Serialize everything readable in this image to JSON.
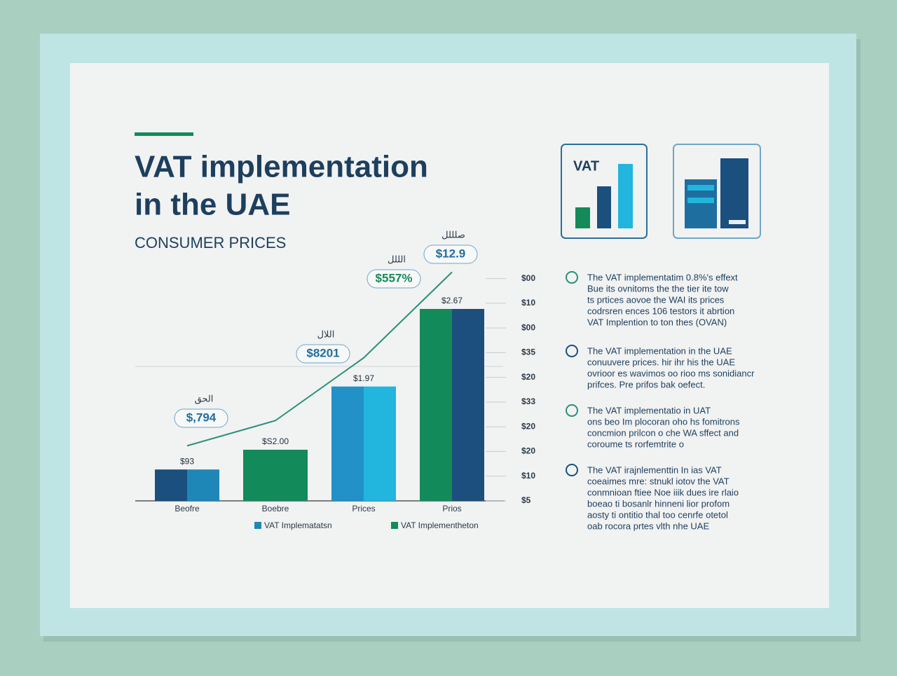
{
  "header": {
    "title_lines": [
      "VAT implementation",
      "in the UAE"
    ],
    "subtitle": "CONSUMER PRICES"
  },
  "icon_label": "VAT",
  "chart_data": {
    "type": "bar",
    "categories": [
      "Beofre",
      "Boebre",
      "Prices",
      "Prios"
    ],
    "series": [
      {
        "name": "VAT Implematatsn",
        "color": "#1f86b8",
        "bar_colors": [
          "#1a4f7e",
          "#138a5a",
          "#2291c7",
          "#138a5a"
        ],
        "values": [
          1.27,
          2.07,
          4.63,
          7.77
        ]
      },
      {
        "name": "VAT Implementheton",
        "color": "#138a5a",
        "bar_colors": [
          "#1f86b8",
          "#138a5a",
          "#22b5dd",
          "#1c4f7e"
        ],
        "values": [
          1.27,
          2.07,
          4.63,
          7.77
        ]
      }
    ],
    "bar_labels": [
      "$93",
      "$S2.00",
      "$1.97",
      "$2.67"
    ],
    "line": {
      "color": "#2a8f7a",
      "values": [
        2.23,
        3.25,
        5.79,
        9.26
      ]
    },
    "callouts": [
      {
        "label": "$,794",
        "note": "الحق"
      },
      {
        "label": "$8201",
        "note": "اللال"
      },
      {
        "label": "$557%",
        "note": "الللل"
      },
      {
        "label": "$12.9",
        "note": "صلللل"
      }
    ],
    "ylim": [
      0,
      9.5
    ],
    "yticks": [
      {
        "value": 0,
        "label": "$5"
      },
      {
        "value": 1,
        "label": "$10"
      },
      {
        "value": 2,
        "label": "$20"
      },
      {
        "value": 3,
        "label": "$20"
      },
      {
        "value": 4,
        "label": "$33"
      },
      {
        "value": 5,
        "label": "$20"
      },
      {
        "value": 6,
        "label": "$35"
      },
      {
        "value": 7,
        "label": "$00"
      },
      {
        "value": 8,
        "label": "$10"
      },
      {
        "value": 9,
        "label": "$00"
      }
    ]
  },
  "notes": [
    [
      "The VAT implementatim  0.8%'s effext",
      "Bue its ovnitoms the the tier ite tow",
      "ts prtices aovoe the WAI its prices",
      "codrsren ences 106 testors it abrtion",
      "VAT Implention to ton thes (OVAN)"
    ],
    [
      "The VAT implementation in the UAE",
      "conuuvere prices. hir ihr his the UAE",
      "ovrioor es wavimos oo rioo ms sonidiancr",
      "prifces. Pre prifos bak oefect."
    ],
    [
      "The VAT  implementatio   in UAT",
      "ons beo  Im plocoran oho hs fomitrons",
      "concmion prilcon o che WA sffect and",
      "coroume ts rorfemtrite o"
    ],
    [
      "The VAT irajnlementtin  In  ias  VAT",
      "coeaimes mre: stnukl iotov the VAT",
      "conmnioan ftiee Noe iiik dues ire rlaio",
      "boeao  ti  bosanlr hinneni  lior profom",
      "aosty  ti ontitio thal  too cenrfe otetol",
      "oab rocora prtes vlth nhe UAE"
    ]
  ]
}
